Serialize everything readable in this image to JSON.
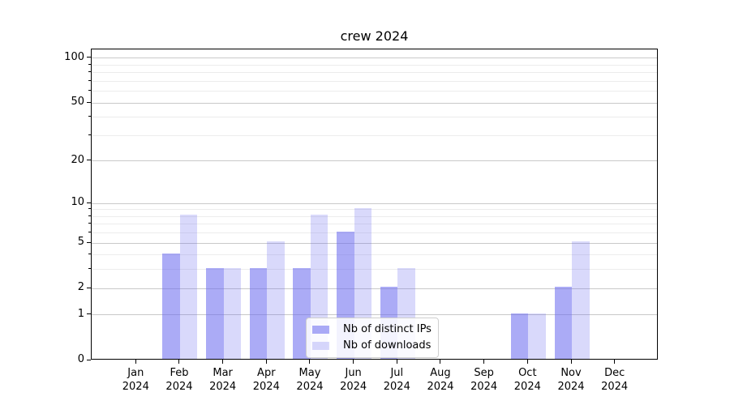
{
  "figure": {
    "background": "#ffffff"
  },
  "chart_data": {
    "type": "bar",
    "title": "crew 2024",
    "y_scale": "log1p",
    "ylim": [
      0,
      115
    ],
    "grid": "horizontal",
    "legend_position": "lower-center-inside",
    "x_tick_labels": [
      [
        "Jan",
        "2024"
      ],
      [
        "Feb",
        "2024"
      ],
      [
        "Mar",
        "2024"
      ],
      [
        "Apr",
        "2024"
      ],
      [
        "May",
        "2024"
      ],
      [
        "Jun",
        "2024"
      ],
      [
        "Jul",
        "2024"
      ],
      [
        "Aug",
        "2024"
      ],
      [
        "Sep",
        "2024"
      ],
      [
        "Oct",
        "2024"
      ],
      [
        "Nov",
        "2024"
      ],
      [
        "Dec",
        "2024"
      ]
    ],
    "y_major_ticks": [
      0,
      1,
      2,
      5,
      10,
      20,
      50,
      100
    ],
    "y_minor_ticks": [
      3,
      4,
      6,
      7,
      8,
      9,
      30,
      40,
      60,
      70,
      80,
      90
    ],
    "series": [
      {
        "name": "Nb of distinct IPs",
        "base_color": "#6666ee",
        "alpha": 0.55,
        "rendered_color": "#aaaaf4",
        "values": [
          0,
          4,
          3,
          3,
          3,
          6,
          2,
          0,
          0,
          1,
          2,
          0
        ]
      },
      {
        "name": "Nb of downloads",
        "base_color": "#6666ee",
        "alpha": 0.25,
        "rendered_color": "#d9d9fa",
        "values": [
          0,
          8,
          3,
          5,
          8,
          9,
          3,
          0,
          0,
          1,
          5,
          0
        ]
      }
    ],
    "colors": {
      "axis": "#000000",
      "grid_major": "#c9c9c9",
      "grid_minor": "#ececec",
      "legend_border": "#cfcfcf"
    }
  }
}
